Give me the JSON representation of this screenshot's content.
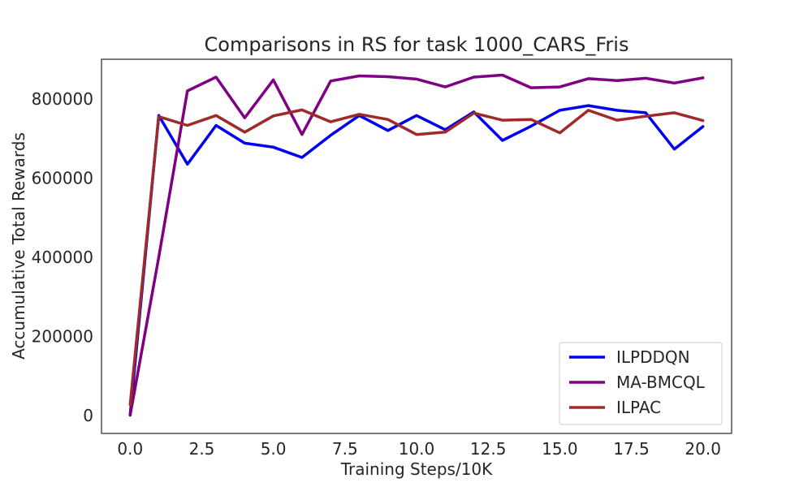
{
  "chart_data": {
    "type": "line",
    "title": "Comparisons in RS for task 1000_CARS_Fris",
    "xlabel": "Training Steps/10K",
    "ylabel": "Accumulative Total Rewards",
    "xlim": [
      -1,
      21
    ],
    "ylim": [
      -45000,
      900000
    ],
    "xticks": [
      0,
      2.5,
      5,
      7.5,
      10,
      12.5,
      15,
      17.5,
      20
    ],
    "xtick_labels": [
      "0.0",
      "2.5",
      "5.0",
      "7.5",
      "10.0",
      "12.5",
      "15.0",
      "17.5",
      "20.0"
    ],
    "yticks": [
      0,
      200000,
      400000,
      600000,
      800000
    ],
    "ytick_labels": [
      "0",
      "200000",
      "400000",
      "600000",
      "800000"
    ],
    "grid": false,
    "legend_position": "lower-right",
    "x": [
      0,
      1,
      2,
      3,
      4,
      5,
      6,
      7,
      8,
      9,
      10,
      11,
      12,
      13,
      14,
      15,
      16,
      17,
      18,
      19,
      20
    ],
    "series": [
      {
        "name": "ILPDDQN",
        "color": "#0000ee",
        "values": [
          2000,
          758000,
          635000,
          733000,
          688000,
          678000,
          652000,
          708000,
          758000,
          720000,
          758000,
          722000,
          767000,
          695000,
          731000,
          771000,
          783000,
          771000,
          765000,
          673000,
          730000
        ]
      },
      {
        "name": "MA-BMCQL",
        "color": "#7f0080",
        "values": [
          1000,
          400000,
          820000,
          855000,
          752000,
          848000,
          710000,
          845000,
          858000,
          856000,
          850000,
          830000,
          855000,
          860000,
          828000,
          830000,
          851000,
          846000,
          852000,
          840000,
          853000
        ]
      },
      {
        "name": "ILPAC",
        "color": "#9e2a2a",
        "values": [
          28000,
          755000,
          733000,
          758000,
          716000,
          757000,
          772000,
          742000,
          761000,
          748000,
          710000,
          716000,
          764000,
          746000,
          748000,
          714000,
          771000,
          746000,
          756000,
          765000,
          745000
        ]
      }
    ]
  }
}
